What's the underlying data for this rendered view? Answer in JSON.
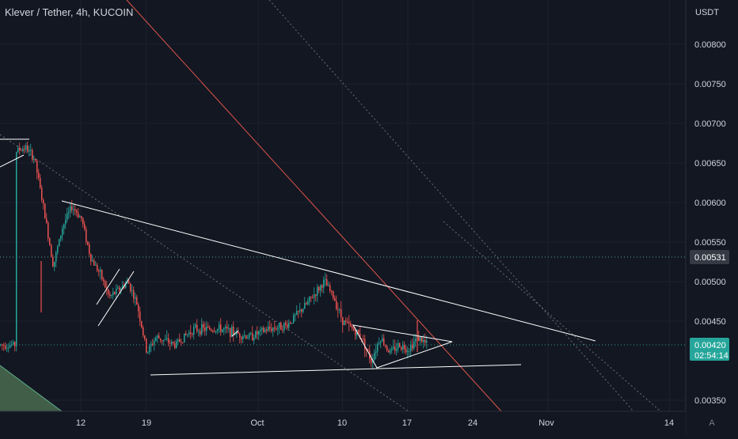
{
  "header": {
    "title": "Klever / Tether, 4h, KUCOIN"
  },
  "price_axis": {
    "currency": "USDT",
    "ticks": [
      "0.00800",
      "0.00750",
      "0.00700",
      "0.00650",
      "0.00600",
      "0.00550",
      "0.00500",
      "0.00450",
      "0.00350"
    ],
    "level_label": "0.00531",
    "current_price": "0.00420",
    "countdown": "02:54:14"
  },
  "time_axis": {
    "labels": [
      "12",
      "19",
      "Oct",
      "10",
      "17",
      "24",
      "Nov",
      "14"
    ],
    "auto_scale_label": "A"
  },
  "colors": {
    "background": "#131722",
    "up": "#26a69a",
    "down": "#ef5350",
    "trendline": "#ffffff",
    "red_line": "#e0564c",
    "level_line": "#4fa3a0",
    "current_price_badge": "#26a69a",
    "level_badge": "#363a45"
  },
  "chart_data": {
    "type": "candlestick",
    "title": "Klever / Tether, 4h, KUCOIN",
    "y_unit": "USDT",
    "ylim": [
      0.0034,
      0.0084
    ],
    "x_range": [
      "Sep 5",
      "Nov 14"
    ],
    "x_ticks": [
      "12",
      "19",
      "Oct",
      "10",
      "17",
      "24",
      "Nov",
      "14"
    ],
    "y_ticks": [
      0.008,
      0.0075,
      0.007,
      0.0065,
      0.006,
      0.0055,
      0.005,
      0.0045,
      0.0035
    ],
    "horizontal_level": 0.00531,
    "current_price": 0.0042,
    "close_path": [
      [
        "Sep 5",
        0.00665
      ],
      [
        "Sep 6",
        0.0067
      ],
      [
        "Sep 7",
        0.00655
      ],
      [
        "Sep 8",
        0.0059
      ],
      [
        "Sep 9",
        0.0052
      ],
      [
        "Sep 10",
        0.0057
      ],
      [
        "Sep 11",
        0.00595
      ],
      [
        "Sep 12",
        0.0058
      ],
      [
        "Sep 13",
        0.0053
      ],
      [
        "Sep 14",
        0.0051
      ],
      [
        "Sep 15",
        0.0048
      ],
      [
        "Sep 16",
        0.0049
      ],
      [
        "Sep 17",
        0.005
      ],
      [
        "Sep 18",
        0.0047
      ],
      [
        "Sep 19",
        0.0041
      ],
      [
        "Sep 20",
        0.0043
      ],
      [
        "Sep 22",
        0.0042
      ],
      [
        "Sep 24",
        0.0044
      ],
      [
        "Sep 27",
        0.0044
      ],
      [
        "Sep 30",
        0.0043
      ],
      [
        "Oct 2",
        0.0044
      ],
      [
        "Oct 4",
        0.00445
      ],
      [
        "Oct 6",
        0.0047
      ],
      [
        "Oct 8",
        0.005
      ],
      [
        "Oct 9",
        0.0048
      ],
      [
        "Oct 10",
        0.0045
      ],
      [
        "Oct 11",
        0.0044
      ],
      [
        "Oct 12",
        0.0043
      ],
      [
        "Oct 13",
        0.004
      ],
      [
        "Oct 14",
        0.0043
      ],
      [
        "Oct 15",
        0.0041
      ],
      [
        "Oct 16",
        0.0042
      ],
      [
        "Oct 17",
        0.00415
      ],
      [
        "Oct 18",
        0.0043
      ],
      [
        "Oct 19",
        0.0042
      ]
    ],
    "drawings": [
      {
        "type": "trendline",
        "from": [
          "Sep 10",
          0.00605
        ],
        "to": [
          "Nov 11",
          0.0042
        ]
      },
      {
        "type": "trendline",
        "from": [
          "Sep 19",
          0.0038
        ],
        "to": [
          "Oct 28",
          0.0039
        ]
      },
      {
        "type": "triangle",
        "points": [
          [
            "Oct 12",
            0.00445
          ],
          [
            "Oct 21",
            0.0042
          ],
          [
            "Oct 14",
            0.0039
          ]
        ]
      },
      {
        "type": "line",
        "from": [
          "Sep 24",
          0.0085
        ],
        "to": [
          "Oct 25",
          0.0034
        ]
      }
    ]
  }
}
